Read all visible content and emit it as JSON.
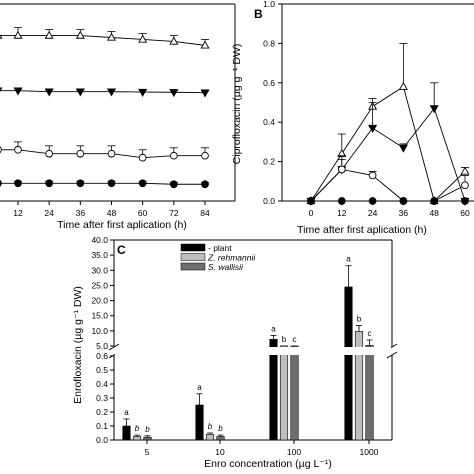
{
  "chart_data": [
    {
      "panel": "A",
      "type": "line",
      "xlabel": "Time after first aplication (h)",
      "x": [
        12,
        24,
        36,
        48,
        60,
        72,
        84
      ],
      "xticks": [
        12,
        24,
        36,
        48,
        60,
        72,
        84
      ],
      "ylim": [
        0,
        1.0
      ],
      "grid": false,
      "series": [
        {
          "marker": "triangle-up-open",
          "values": [
            0.84,
            0.84,
            0.84,
            0.83,
            0.82,
            0.81,
            0.79
          ],
          "errors": [
            0.04,
            0.03,
            0.03,
            0.03,
            0.03,
            0.03,
            0.03
          ]
        },
        {
          "marker": "triangle-down-filled",
          "values": [
            0.56,
            0.555,
            0.555,
            0.555,
            0.553,
            0.552,
            0.55
          ],
          "errors": [
            0.01,
            0.01,
            0.01,
            0.01,
            0.01,
            0.01,
            0.01
          ]
        },
        {
          "marker": "circle-open",
          "values": [
            0.26,
            0.24,
            0.24,
            0.24,
            0.22,
            0.23,
            0.23
          ],
          "errors": [
            0.04,
            0.04,
            0.04,
            0.04,
            0.04,
            0.04,
            0.04
          ]
        },
        {
          "marker": "circle-filled",
          "values": [
            0.09,
            0.09,
            0.09,
            0.09,
            0.09,
            0.085,
            0.085
          ],
          "errors": [
            0.01,
            0.01,
            0.01,
            0.01,
            0.01,
            0.01,
            0.01
          ]
        }
      ]
    },
    {
      "panel": "B",
      "type": "line",
      "xlabel": "Time after first aplication (h)",
      "ylabel": "Ciprofloxacin (µg g⁻¹ DW)",
      "x": [
        0,
        12,
        24,
        36,
        48,
        60
      ],
      "xticks": [
        "0",
        "12",
        "24",
        "36",
        "48",
        "60"
      ],
      "yticks": [
        "0.0",
        "0.2",
        "0.4",
        "0.6",
        "0.8",
        "1.0"
      ],
      "ylim": [
        0,
        1.0
      ],
      "grid": false,
      "series": [
        {
          "marker": "triangle-up-open",
          "values": [
            0,
            0.24,
            0.48,
            0.58,
            0,
            0.15
          ],
          "errors": [
            0,
            0.1,
            0.04,
            0.22,
            0,
            0.02
          ]
        },
        {
          "marker": "triangle-down-filled",
          "values": [
            0,
            0.16,
            0.37,
            0.27,
            0.47,
            0
          ],
          "errors": [
            0,
            0.07,
            0.13,
            0.02,
            0.13,
            0
          ]
        },
        {
          "marker": "circle-open",
          "values": [
            0,
            0.16,
            0.13,
            0,
            0,
            0.08
          ],
          "errors": [
            0,
            0.05,
            0.02,
            0,
            0,
            0.05
          ]
        },
        {
          "marker": "circle-filled",
          "values": [
            0,
            0,
            0,
            0,
            0,
            0
          ],
          "errors": [
            0,
            0,
            0,
            0,
            0,
            0
          ]
        }
      ]
    },
    {
      "panel": "C",
      "type": "bar",
      "xlabel": "Enro concentration (µg L⁻¹)",
      "ylabel": "Enrofloxacin (µg g⁻¹ DW)",
      "categories": [
        "5",
        "10",
        "100",
        "1000"
      ],
      "broken_axis": true,
      "lower_yticks": [
        "0.0",
        "0.1",
        "0.2",
        "0.3",
        "0.4",
        "0.5",
        "0.6"
      ],
      "upper_yticks": [
        "10.0",
        "15.0",
        "20.0",
        "25.0",
        "30.0",
        "35.0",
        "40.0"
      ],
      "extra_tick": "5.0",
      "legend": "top-left",
      "series": [
        {
          "name": "- plant",
          "color": "#000000",
          "values": [
            0.1,
            0.25,
            7.2,
            24.5
          ],
          "errors": [
            0.05,
            0.08,
            1.3,
            7.0
          ],
          "letters": [
            "a",
            "a",
            "a",
            "a"
          ]
        },
        {
          "name": "Z. rehmannii",
          "color": "#bdbdbd",
          "values": [
            0.025,
            0.04,
            3.2,
            9.8
          ],
          "errors": [
            0.01,
            0.01,
            0.8,
            2.0
          ],
          "letters": [
            "b",
            "b",
            "b",
            "b"
          ]
        },
        {
          "name": "S. wallisii",
          "color": "#6e6e6e",
          "values": [
            0.02,
            0.025,
            1.5,
            5.2
          ],
          "errors": [
            0.01,
            0.01,
            0.5,
            1.8
          ],
          "letters": [
            "b",
            "b",
            "c",
            "c"
          ]
        }
      ]
    }
  ],
  "panel_labels": {
    "b": "B",
    "c": "C"
  }
}
